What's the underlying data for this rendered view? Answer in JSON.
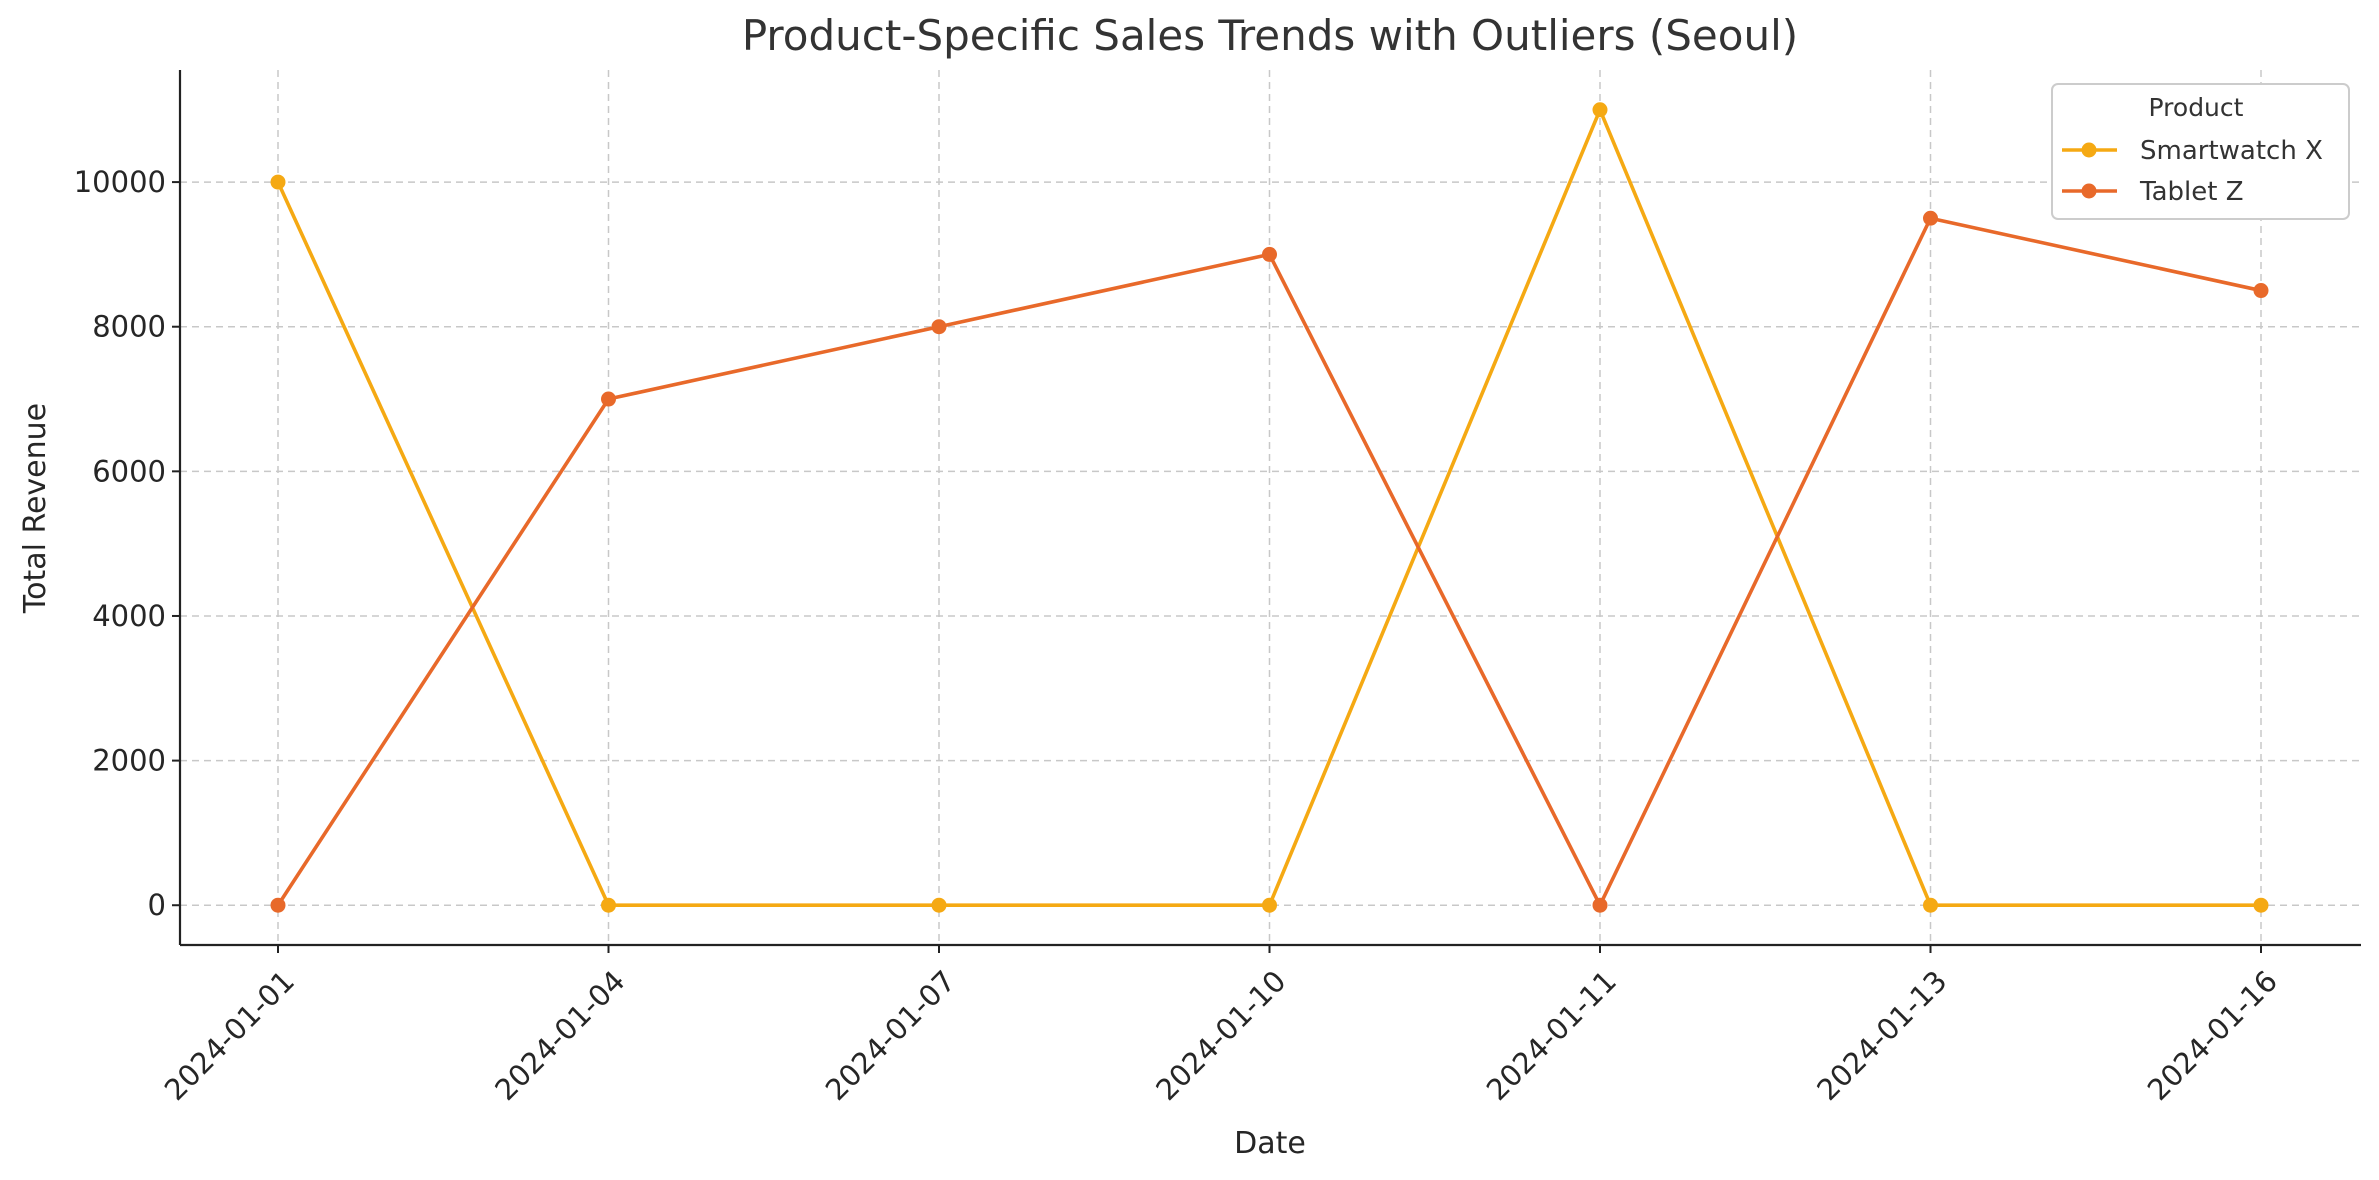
{
  "chart_data": {
    "type": "line",
    "title": "Product-Specific Sales Trends with Outliers (Seoul)",
    "xlabel": "Date",
    "ylabel": "Total Revenue",
    "categories": [
      "2024-01-01",
      "2024-01-04",
      "2024-01-07",
      "2024-01-10",
      "2024-01-11",
      "2024-01-13",
      "2024-01-16"
    ],
    "yticks": [
      0,
      2000,
      4000,
      6000,
      8000,
      10000
    ],
    "ylim": [
      -550,
      11550
    ],
    "grid": true,
    "legend": {
      "title": "Product",
      "placement": "top-right"
    },
    "series": [
      {
        "name": "Smartwatch X",
        "color": "#F5A913",
        "values": [
          10000,
          0,
          0,
          0,
          11000,
          0,
          0
        ]
      },
      {
        "name": "Tablet Z",
        "color": "#E8692A",
        "values": [
          0,
          7000,
          8000,
          9000,
          0,
          9500,
          8500
        ]
      }
    ]
  }
}
